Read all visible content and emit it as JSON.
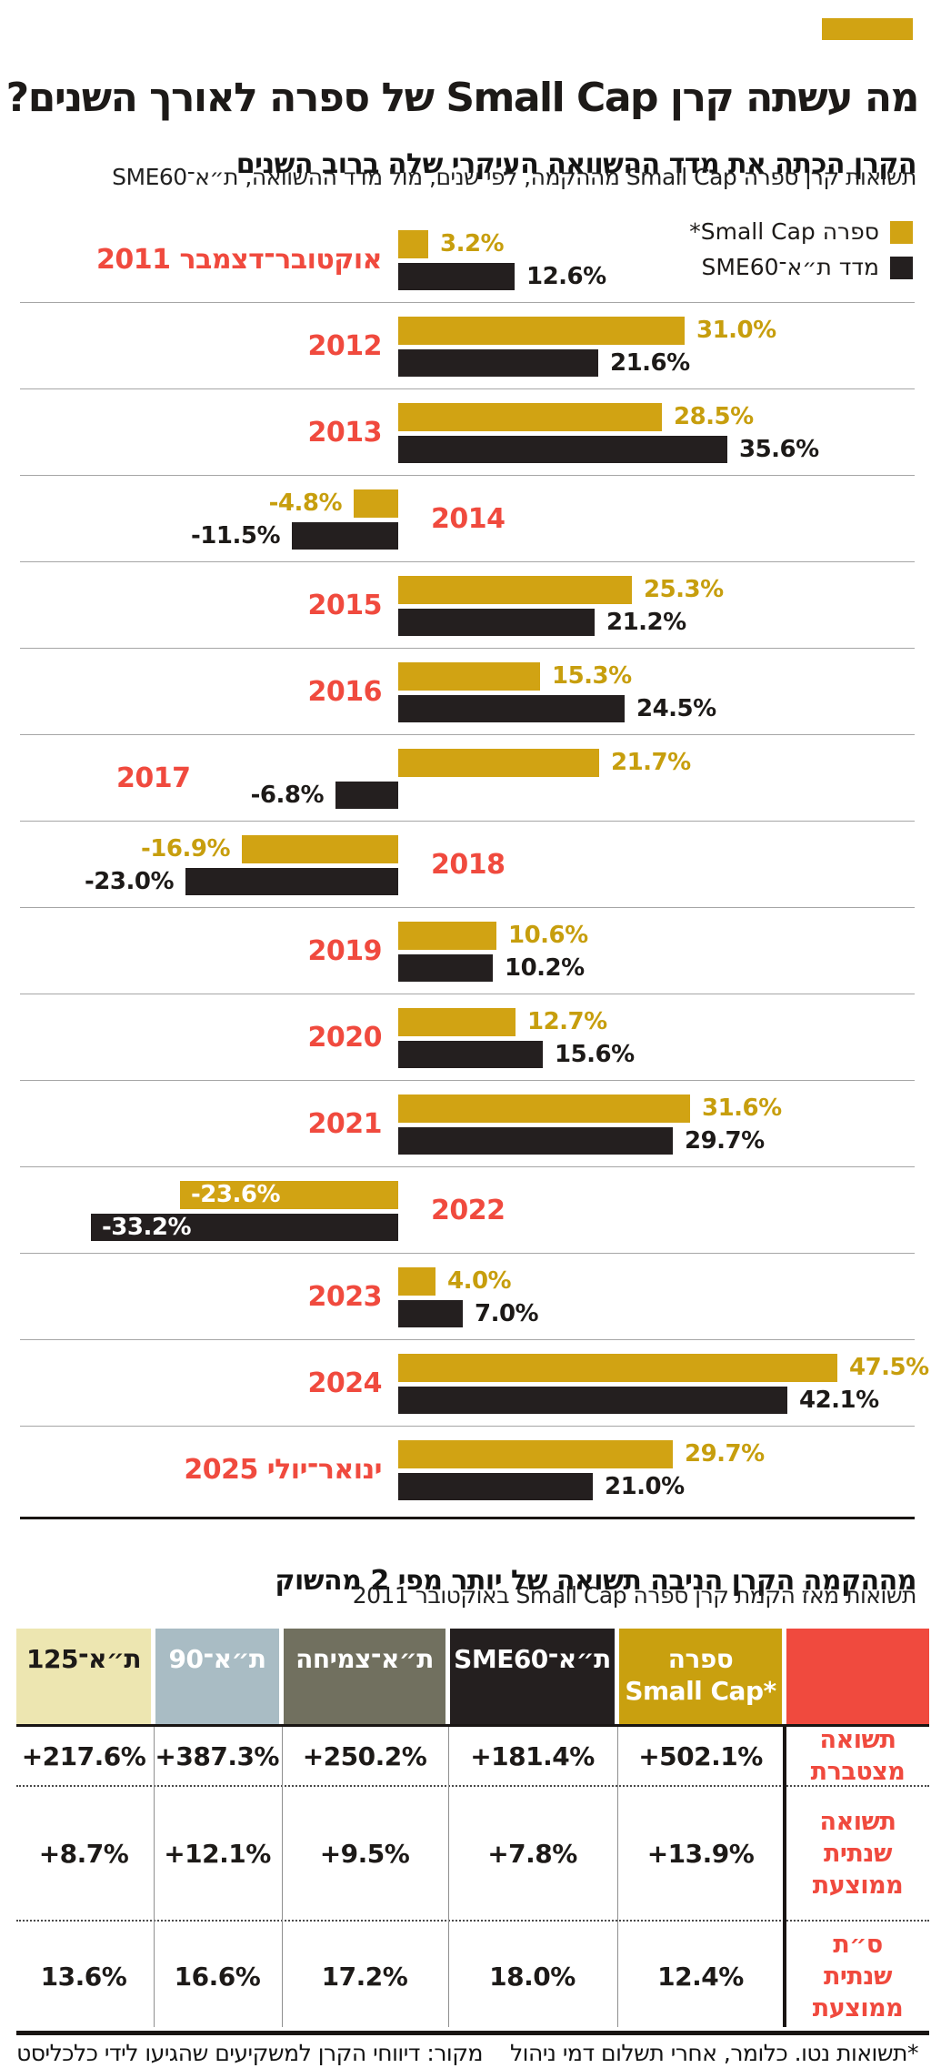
{
  "page": {
    "background": "#ffffff",
    "accent_gold": "#D1A313",
    "accent_red": "#F04A3E",
    "accent_dark": "#241F1F"
  },
  "header": {
    "title": "מה עשתה קרן Small Cap של ספרה לאורך השנים?",
    "subtitle": "הקרן הכתה את מדד ההשוואה העיקרי שלה ברוב השנים",
    "description": "תשואות קרן ספרה Small Cap מההקמה, לפי שנים, מול מדד ההשוואה, ת״א־SME60"
  },
  "legend": {
    "items": [
      {
        "label": "ספרה Small Cap*",
        "color": "#D1A313"
      },
      {
        "label": "מדד ת״א־SME60",
        "color": "#241F1F"
      }
    ]
  },
  "chart_data": {
    "type": "bar",
    "orientation": "horizontal",
    "unit": "percent",
    "value_range": [
      -33.2,
      47.5
    ],
    "grid": "row-separators",
    "legend_position": "top-right",
    "series": [
      {
        "name": "ספרה Small Cap*",
        "color": "#D1A313"
      },
      {
        "name": "מדד ת״א־SME60",
        "color": "#241F1F"
      }
    ],
    "rows": [
      {
        "period": "אוקטובר־דצמבר 2011",
        "values": [
          {
            "value": 3.2,
            "display": "3.2%"
          },
          {
            "value": 12.6,
            "display": "12.6%"
          }
        ],
        "year_label_position": "left"
      },
      {
        "period": "2012",
        "values": [
          {
            "value": 31.0,
            "display": "31.0%"
          },
          {
            "value": 21.6,
            "display": "21.6%"
          }
        ],
        "year_label_position": "left"
      },
      {
        "period": "2013",
        "values": [
          {
            "value": 28.5,
            "display": "28.5%"
          },
          {
            "value": 35.6,
            "display": "35.6%"
          }
        ],
        "year_label_position": "left"
      },
      {
        "period": "2014",
        "values": [
          {
            "value": -4.8,
            "display": "-4.8%"
          },
          {
            "value": -11.5,
            "display": "-11.5%"
          }
        ],
        "year_label_position": "right"
      },
      {
        "period": "2015",
        "values": [
          {
            "value": 25.3,
            "display": "25.3%"
          },
          {
            "value": 21.2,
            "display": "21.2%"
          }
        ],
        "year_label_position": "left"
      },
      {
        "period": "2016",
        "values": [
          {
            "value": 15.3,
            "display": "15.3%"
          },
          {
            "value": 24.5,
            "display": "24.5%"
          }
        ],
        "year_label_position": "left"
      },
      {
        "period": "2017",
        "values": [
          {
            "value": 21.7,
            "display": "21.7%"
          },
          {
            "value": -6.8,
            "display": "-6.8%"
          }
        ],
        "year_label_position": "far_left"
      },
      {
        "period": "2018",
        "values": [
          {
            "value": -16.9,
            "display": "-16.9%"
          },
          {
            "value": -23.0,
            "display": "-23.0%"
          }
        ],
        "year_label_position": "right"
      },
      {
        "period": "2019",
        "values": [
          {
            "value": 10.6,
            "display": "10.6%"
          },
          {
            "value": 10.2,
            "display": "10.2%"
          }
        ],
        "year_label_position": "left"
      },
      {
        "period": "2020",
        "values": [
          {
            "value": 12.7,
            "display": "12.7%"
          },
          {
            "value": 15.6,
            "display": "15.6%"
          }
        ],
        "year_label_position": "left"
      },
      {
        "period": "2021",
        "values": [
          {
            "value": 31.6,
            "display": "31.6%"
          },
          {
            "value": 29.7,
            "display": "29.7%"
          }
        ],
        "year_label_position": "left"
      },
      {
        "period": "2022",
        "values": [
          {
            "value": -23.6,
            "display": "-23.6%"
          },
          {
            "value": -33.2,
            "display": "-33.2%"
          }
        ],
        "year_label_position": "right",
        "value_labels": "inside"
      },
      {
        "period": "2023",
        "values": [
          {
            "value": 4.0,
            "display": "4.0%"
          },
          {
            "value": 7.0,
            "display": "7.0%"
          }
        ],
        "year_label_position": "left"
      },
      {
        "period": "2024",
        "values": [
          {
            "value": 47.5,
            "display": "47.5%"
          },
          {
            "value": 42.1,
            "display": "42.1%"
          }
        ],
        "year_label_position": "left"
      },
      {
        "period": "ינואר־יולי 2025",
        "values": [
          {
            "value": 29.7,
            "display": "29.7%"
          },
          {
            "value": 21.0,
            "display": "21.0%"
          }
        ],
        "year_label_position": "left"
      }
    ]
  },
  "table": {
    "title": "מההקמה הקרן הניבה תשואה של יותר מפי 2 מהשוק",
    "subtitle": "תשואות מאז הקמת קרן ספרה Small Cap באוקטובר 2011",
    "label_column_header_bg": "#F04A3E",
    "columns": [
      {
        "key": "sphera-small-cap",
        "label_lines": [
          "ספרה",
          "*Small Cap"
        ],
        "bg": "#C9A00F",
        "fg": "#ffffff"
      },
      {
        "key": "ta-sme60",
        "label_lines": [
          "ת״א־SME60"
        ],
        "bg": "#241F1F",
        "fg": "#ffffff"
      },
      {
        "key": "ta-growth",
        "label_lines": [
          "ת״א־צמיחה"
        ],
        "bg": "#71705F",
        "fg": "#ffffff"
      },
      {
        "key": "ta-90",
        "label_lines": [
          "ת״א־90"
        ],
        "bg": "#A9BCC4",
        "fg": "#ffffff"
      },
      {
        "key": "ta-125",
        "label_lines": [
          "ת״א־125"
        ],
        "bg": "#EDE6B1",
        "fg": "#1d1a18"
      }
    ],
    "rows": [
      {
        "label_lines": [
          "תשואה",
          "מצטברת"
        ],
        "values": [
          "+502.1%",
          "+181.4%",
          "+250.2%",
          "+387.3%",
          "+217.6%"
        ]
      },
      {
        "label_lines": [
          "תשואה",
          "שנתית",
          "ממוצעת"
        ],
        "values": [
          "+13.9%",
          "+7.8%",
          "+9.5%",
          "+12.1%",
          "+8.7%"
        ]
      },
      {
        "label_lines": [
          "ס״ת",
          "שנתית",
          "ממוצעת"
        ],
        "values": [
          "12.4%",
          "18.0%",
          "17.2%",
          "16.6%",
          "13.6%"
        ]
      }
    ]
  },
  "footnote": {
    "note": "*תשואות נטו. כלומר, אחרי תשלום דמי ניהול",
    "source": "מקור: דיווחי הקרן למשקיעים שהגיעו לידי כלכליסט"
  }
}
